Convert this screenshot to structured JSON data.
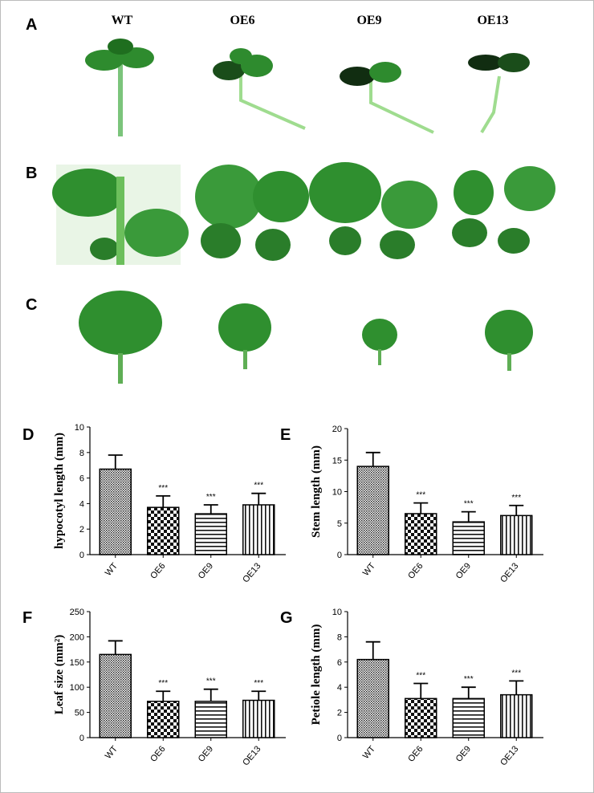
{
  "figure": {
    "photo_panels": [
      "A",
      "B",
      "C"
    ],
    "genotypes": [
      "WT",
      "OE6",
      "OE9",
      "OE13"
    ]
  },
  "chart_data": [
    {
      "type": "bar",
      "panel_label": "D",
      "ylabel": "hypocotyl length (mm)",
      "categories": [
        "WT",
        "OE6",
        "OE9",
        "OE13"
      ],
      "values": [
        6.7,
        3.7,
        3.2,
        3.9
      ],
      "errors": [
        1.1,
        0.9,
        0.7,
        0.9
      ],
      "annotations": [
        null,
        "***",
        "***",
        "***"
      ],
      "ylim": [
        0,
        10
      ],
      "yticks": [
        0,
        2,
        4,
        6,
        8,
        10
      ],
      "color": "#000000"
    },
    {
      "type": "bar",
      "panel_label": "E",
      "ylabel": "Stem length (mm)",
      "categories": [
        "WT",
        "OE6",
        "OE9",
        "OE13"
      ],
      "values": [
        14,
        6.5,
        5.2,
        6.2
      ],
      "errors": [
        2.2,
        1.7,
        1.6,
        1.6
      ],
      "annotations": [
        null,
        "***",
        "***",
        "***"
      ],
      "ylim": [
        0,
        20
      ],
      "yticks": [
        0,
        5,
        10,
        15,
        20
      ],
      "color": "#000000"
    },
    {
      "type": "bar",
      "panel_label": "F",
      "ylabel": "Leaf size (mm²)",
      "categories": [
        "WT",
        "OE6",
        "OE9",
        "OE13"
      ],
      "values": [
        165,
        72,
        72,
        74
      ],
      "errors": [
        27,
        20,
        24,
        18
      ],
      "annotations": [
        null,
        "***",
        "***",
        "***"
      ],
      "ylim": [
        0,
        250
      ],
      "yticks": [
        0,
        50,
        100,
        150,
        200,
        250
      ],
      "color": "#000000"
    },
    {
      "type": "bar",
      "panel_label": "G",
      "ylabel": "Petiole length (mm)",
      "categories": [
        "WT",
        "OE6",
        "OE9",
        "OE13"
      ],
      "values": [
        6.2,
        3.1,
        3.1,
        3.4
      ],
      "errors": [
        1.4,
        1.2,
        0.9,
        1.1
      ],
      "annotations": [
        null,
        "***",
        "***",
        "***"
      ],
      "ylim": [
        0,
        10
      ],
      "yticks": [
        0,
        2,
        4,
        6,
        8,
        10
      ],
      "color": "#000000"
    }
  ]
}
